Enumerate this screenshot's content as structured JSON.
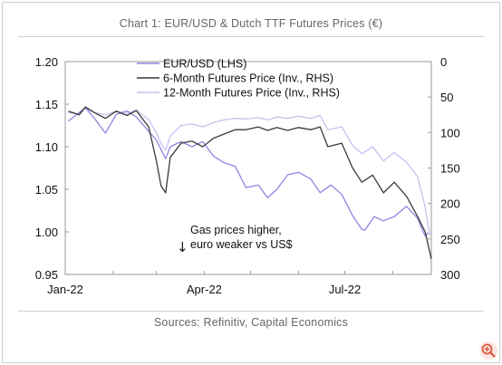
{
  "title": "Chart 1: EUR/USD & Dutch TTF Futures Prices (€)",
  "source": "Sources: Refinitiv, Capital Economics",
  "annotation": {
    "arrow": "↓",
    "line1": "Gas prices higher,",
    "line2": "euro weaker vs US$"
  },
  "colors": {
    "eurusd": "#8c87e2",
    "six_month": "#3a3a3a",
    "twelve_month": "#c5c2f0",
    "zoom_accent": "#e0573f"
  },
  "zoom_icon": "zoom-in-icon",
  "chart_data": {
    "type": "line",
    "x_axis": {
      "type": "date",
      "ticks": [
        "Jan-22",
        "Apr-22",
        "Jul-22"
      ],
      "range": [
        "2022-01-01",
        "2022-08-26"
      ]
    },
    "y_left": {
      "label": "",
      "range": [
        0.95,
        1.2
      ],
      "ticks": [
        "0.95",
        "1.00",
        "1.05",
        "1.10",
        "1.15",
        "1.20"
      ]
    },
    "y_right": {
      "label": "",
      "range": [
        0,
        300
      ],
      "inverted": true,
      "ticks": [
        "0",
        "50",
        "100",
        "150",
        "200",
        "250",
        "300"
      ]
    },
    "legend": {
      "position": "top-center"
    },
    "series": [
      {
        "name": "EUR/USD (LHS)",
        "axis": "left",
        "points": [
          [
            "2022-01-03",
            1.13
          ],
          [
            "2022-01-10",
            1.14
          ],
          [
            "2022-01-14",
            1.146
          ],
          [
            "2022-01-20",
            1.133
          ],
          [
            "2022-01-27",
            1.116
          ],
          [
            "2022-02-03",
            1.138
          ],
          [
            "2022-02-10",
            1.142
          ],
          [
            "2022-02-16",
            1.135
          ],
          [
            "2022-02-24",
            1.118
          ],
          [
            "2022-03-01",
            1.108
          ],
          [
            "2022-03-07",
            1.086
          ],
          [
            "2022-03-10",
            1.1
          ],
          [
            "2022-03-17",
            1.106
          ],
          [
            "2022-03-24",
            1.1
          ],
          [
            "2022-03-31",
            1.106
          ],
          [
            "2022-04-07",
            1.089
          ],
          [
            "2022-04-14",
            1.081
          ],
          [
            "2022-04-21",
            1.077
          ],
          [
            "2022-04-28",
            1.052
          ],
          [
            "2022-05-06",
            1.055
          ],
          [
            "2022-05-12",
            1.04
          ],
          [
            "2022-05-18",
            1.05
          ],
          [
            "2022-05-25",
            1.067
          ],
          [
            "2022-06-01",
            1.07
          ],
          [
            "2022-06-09",
            1.062
          ],
          [
            "2022-06-15",
            1.046
          ],
          [
            "2022-06-22",
            1.055
          ],
          [
            "2022-06-29",
            1.044
          ],
          [
            "2022-07-06",
            1.019
          ],
          [
            "2022-07-12",
            1.003
          ],
          [
            "2022-07-14",
            1.002
          ],
          [
            "2022-07-20",
            1.018
          ],
          [
            "2022-07-26",
            1.013
          ],
          [
            "2022-08-02",
            1.018
          ],
          [
            "2022-08-10",
            1.03
          ],
          [
            "2022-08-17",
            1.016
          ],
          [
            "2022-08-22",
            0.995
          ],
          [
            "2022-08-24",
            0.999
          ]
        ]
      },
      {
        "name": "6-Month Futures Price (Inv., RHS)",
        "axis": "right",
        "points": [
          [
            "2022-01-03",
            70
          ],
          [
            "2022-01-10",
            75
          ],
          [
            "2022-01-14",
            64
          ],
          [
            "2022-01-20",
            72
          ],
          [
            "2022-01-27",
            80
          ],
          [
            "2022-02-03",
            70
          ],
          [
            "2022-02-10",
            76
          ],
          [
            "2022-02-16",
            69
          ],
          [
            "2022-02-24",
            92
          ],
          [
            "2022-03-01",
            140
          ],
          [
            "2022-03-04",
            175
          ],
          [
            "2022-03-07",
            185
          ],
          [
            "2022-03-10",
            135
          ],
          [
            "2022-03-17",
            115
          ],
          [
            "2022-03-24",
            112
          ],
          [
            "2022-03-31",
            120
          ],
          [
            "2022-04-07",
            108
          ],
          [
            "2022-04-14",
            102
          ],
          [
            "2022-04-21",
            96
          ],
          [
            "2022-04-28",
            96
          ],
          [
            "2022-05-06",
            92
          ],
          [
            "2022-05-12",
            97
          ],
          [
            "2022-05-18",
            93
          ],
          [
            "2022-05-25",
            97
          ],
          [
            "2022-06-01",
            93
          ],
          [
            "2022-06-09",
            96
          ],
          [
            "2022-06-15",
            92
          ],
          [
            "2022-06-20",
            120
          ],
          [
            "2022-06-29",
            115
          ],
          [
            "2022-07-06",
            150
          ],
          [
            "2022-07-12",
            170
          ],
          [
            "2022-07-19",
            160
          ],
          [
            "2022-07-26",
            185
          ],
          [
            "2022-08-02",
            170
          ],
          [
            "2022-08-10",
            190
          ],
          [
            "2022-08-17",
            218
          ],
          [
            "2022-08-22",
            240
          ],
          [
            "2022-08-26",
            278
          ]
        ]
      },
      {
        "name": "12-Month Futures Price (Inv., RHS)",
        "axis": "right",
        "points": [
          [
            "2022-01-03",
            72
          ],
          [
            "2022-01-10",
            74
          ],
          [
            "2022-01-14",
            66
          ],
          [
            "2022-01-20",
            72
          ],
          [
            "2022-01-27",
            75
          ],
          [
            "2022-02-03",
            70
          ],
          [
            "2022-02-10",
            73
          ],
          [
            "2022-02-16",
            68
          ],
          [
            "2022-02-24",
            82
          ],
          [
            "2022-03-01",
            100
          ],
          [
            "2022-03-04",
            115
          ],
          [
            "2022-03-07",
            125
          ],
          [
            "2022-03-10",
            105
          ],
          [
            "2022-03-17",
            90
          ],
          [
            "2022-03-24",
            88
          ],
          [
            "2022-03-31",
            92
          ],
          [
            "2022-04-07",
            86
          ],
          [
            "2022-04-14",
            82
          ],
          [
            "2022-04-21",
            80
          ],
          [
            "2022-04-28",
            81
          ],
          [
            "2022-05-06",
            79
          ],
          [
            "2022-05-12",
            82
          ],
          [
            "2022-05-18",
            78
          ],
          [
            "2022-05-25",
            80
          ],
          [
            "2022-06-01",
            77
          ],
          [
            "2022-06-09",
            80
          ],
          [
            "2022-06-15",
            76
          ],
          [
            "2022-06-20",
            96
          ],
          [
            "2022-06-29",
            92
          ],
          [
            "2022-07-06",
            118
          ],
          [
            "2022-07-12",
            130
          ],
          [
            "2022-07-19",
            120
          ],
          [
            "2022-07-26",
            140
          ],
          [
            "2022-08-02",
            128
          ],
          [
            "2022-08-10",
            142
          ],
          [
            "2022-08-17",
            162
          ],
          [
            "2022-08-22",
            205
          ],
          [
            "2022-08-25",
            245
          ]
        ]
      }
    ]
  }
}
